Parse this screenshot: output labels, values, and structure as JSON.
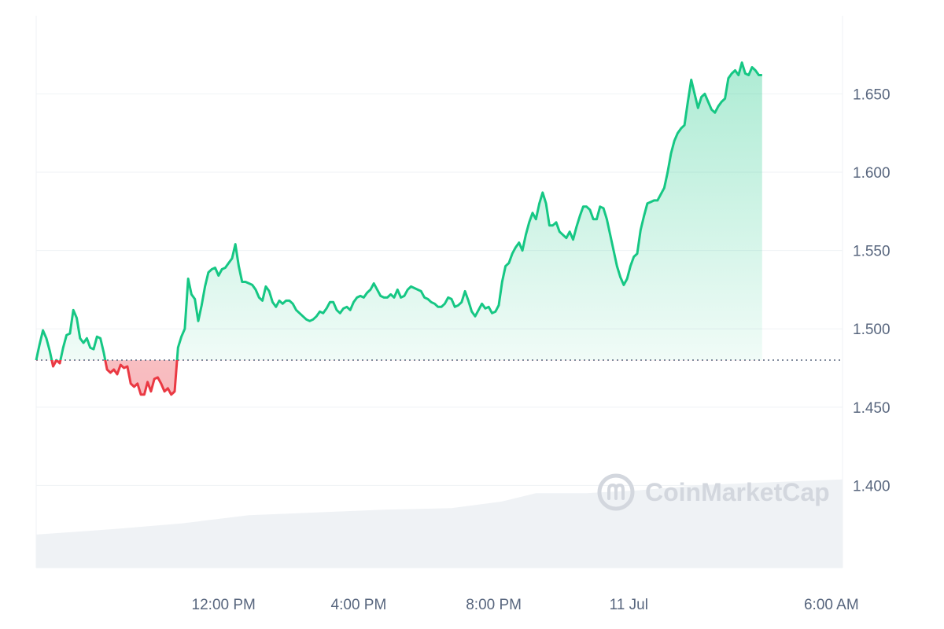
{
  "chart_data": {
    "type": "area",
    "baseline": 1.48,
    "colors": {
      "up": "#16c784",
      "down": "#ea3943",
      "grid": "#eff2f5",
      "volume": "#eff2f5",
      "baseline": "#58667e",
      "axis_text": "#58667e"
    },
    "y_ticks": [
      {
        "value": 1.4,
        "label": "1.400"
      },
      {
        "value": 1.45,
        "label": "1.450"
      },
      {
        "value": 1.5,
        "label": "1.500"
      },
      {
        "value": 1.55,
        "label": "1.550"
      },
      {
        "value": 1.6,
        "label": "1.600"
      },
      {
        "value": 1.65,
        "label": "1.650"
      }
    ],
    "x_ticks": [
      {
        "hour": 3.25,
        "label": "12:00 PM"
      },
      {
        "hour": 7.25,
        "label": "4:00 PM"
      },
      {
        "hour": 11.25,
        "label": "8:00 PM"
      },
      {
        "hour": 15.25,
        "label": "11 Jul"
      },
      {
        "hour": 21.25,
        "label": "6:00 AM"
      }
    ],
    "ylim": [
      1.3475,
      1.6999
    ],
    "xlim": [
      -2.3,
      21.58
    ],
    "price": [
      [
        -2.3,
        1.48
      ],
      [
        -2.2,
        1.49
      ],
      [
        -2.1,
        1.499
      ],
      [
        -2.0,
        1.494
      ],
      [
        -1.9,
        1.486
      ],
      [
        -1.8,
        1.476
      ],
      [
        -1.7,
        1.48
      ],
      [
        -1.6,
        1.478
      ],
      [
        -1.5,
        1.488
      ],
      [
        -1.4,
        1.496
      ],
      [
        -1.3,
        1.497
      ],
      [
        -1.2,
        1.512
      ],
      [
        -1.1,
        1.507
      ],
      [
        -1.0,
        1.494
      ],
      [
        -0.9,
        1.491
      ],
      [
        -0.8,
        1.494
      ],
      [
        -0.7,
        1.488
      ],
      [
        -0.6,
        1.487
      ],
      [
        -0.5,
        1.495
      ],
      [
        -0.4,
        1.494
      ],
      [
        -0.3,
        1.485
      ],
      [
        -0.2,
        1.474
      ],
      [
        -0.1,
        1.472
      ],
      [
        0.0,
        1.474
      ],
      [
        0.1,
        1.471
      ],
      [
        0.2,
        1.477
      ],
      [
        0.3,
        1.475
      ],
      [
        0.4,
        1.476
      ],
      [
        0.5,
        1.465
      ],
      [
        0.6,
        1.463
      ],
      [
        0.7,
        1.465
      ],
      [
        0.8,
        1.458
      ],
      [
        0.9,
        1.458
      ],
      [
        1.0,
        1.466
      ],
      [
        1.1,
        1.46
      ],
      [
        1.2,
        1.468
      ],
      [
        1.3,
        1.469
      ],
      [
        1.4,
        1.465
      ],
      [
        1.5,
        1.46
      ],
      [
        1.6,
        1.462
      ],
      [
        1.7,
        1.458
      ],
      [
        1.8,
        1.46
      ],
      [
        1.9,
        1.488
      ],
      [
        2.0,
        1.495
      ],
      [
        2.1,
        1.5
      ],
      [
        2.2,
        1.532
      ],
      [
        2.3,
        1.522
      ],
      [
        2.4,
        1.519
      ],
      [
        2.5,
        1.505
      ],
      [
        2.6,
        1.515
      ],
      [
        2.7,
        1.527
      ],
      [
        2.8,
        1.536
      ],
      [
        2.9,
        1.538
      ],
      [
        3.0,
        1.539
      ],
      [
        3.1,
        1.534
      ],
      [
        3.2,
        1.538
      ],
      [
        3.3,
        1.539
      ],
      [
        3.4,
        1.542
      ],
      [
        3.5,
        1.545
      ],
      [
        3.6,
        1.554
      ],
      [
        3.7,
        1.54
      ],
      [
        3.8,
        1.53
      ],
      [
        3.9,
        1.53
      ],
      [
        4.0,
        1.529
      ],
      [
        4.1,
        1.528
      ],
      [
        4.2,
        1.525
      ],
      [
        4.3,
        1.52
      ],
      [
        4.4,
        1.518
      ],
      [
        4.5,
        1.527
      ],
      [
        4.6,
        1.524
      ],
      [
        4.7,
        1.517
      ],
      [
        4.8,
        1.514
      ],
      [
        4.9,
        1.518
      ],
      [
        5.0,
        1.516
      ],
      [
        5.1,
        1.518
      ],
      [
        5.2,
        1.518
      ],
      [
        5.3,
        1.516
      ],
      [
        5.4,
        1.512
      ],
      [
        5.5,
        1.51
      ],
      [
        5.6,
        1.508
      ],
      [
        5.7,
        1.506
      ],
      [
        5.8,
        1.505
      ],
      [
        5.9,
        1.506
      ],
      [
        6.0,
        1.508
      ],
      [
        6.1,
        1.511
      ],
      [
        6.2,
        1.51
      ],
      [
        6.3,
        1.513
      ],
      [
        6.4,
        1.517
      ],
      [
        6.5,
        1.517
      ],
      [
        6.6,
        1.512
      ],
      [
        6.7,
        1.51
      ],
      [
        6.8,
        1.513
      ],
      [
        6.9,
        1.514
      ],
      [
        7.0,
        1.512
      ],
      [
        7.1,
        1.517
      ],
      [
        7.2,
        1.52
      ],
      [
        7.3,
        1.521
      ],
      [
        7.4,
        1.52
      ],
      [
        7.5,
        1.523
      ],
      [
        7.6,
        1.525
      ],
      [
        7.7,
        1.529
      ],
      [
        7.8,
        1.525
      ],
      [
        7.9,
        1.521
      ],
      [
        8.0,
        1.52
      ],
      [
        8.1,
        1.52
      ],
      [
        8.2,
        1.522
      ],
      [
        8.3,
        1.52
      ],
      [
        8.4,
        1.525
      ],
      [
        8.5,
        1.52
      ],
      [
        8.6,
        1.521
      ],
      [
        8.7,
        1.525
      ],
      [
        8.8,
        1.527
      ],
      [
        8.9,
        1.526
      ],
      [
        9.0,
        1.525
      ],
      [
        9.1,
        1.524
      ],
      [
        9.2,
        1.52
      ],
      [
        9.3,
        1.519
      ],
      [
        9.4,
        1.517
      ],
      [
        9.5,
        1.516
      ],
      [
        9.6,
        1.514
      ],
      [
        9.7,
        1.514
      ],
      [
        9.8,
        1.516
      ],
      [
        9.9,
        1.52
      ],
      [
        10.0,
        1.519
      ],
      [
        10.1,
        1.514
      ],
      [
        10.2,
        1.515
      ],
      [
        10.3,
        1.517
      ],
      [
        10.4,
        1.524
      ],
      [
        10.5,
        1.518
      ],
      [
        10.6,
        1.511
      ],
      [
        10.7,
        1.508
      ],
      [
        10.8,
        1.512
      ],
      [
        10.9,
        1.516
      ],
      [
        11.0,
        1.513
      ],
      [
        11.1,
        1.514
      ],
      [
        11.2,
        1.51
      ],
      [
        11.3,
        1.511
      ],
      [
        11.4,
        1.515
      ],
      [
        11.5,
        1.53
      ],
      [
        11.6,
        1.54
      ],
      [
        11.7,
        1.542
      ],
      [
        11.8,
        1.548
      ],
      [
        11.9,
        1.552
      ],
      [
        12.0,
        1.555
      ],
      [
        12.1,
        1.55
      ],
      [
        12.2,
        1.56
      ],
      [
        12.3,
        1.568
      ],
      [
        12.4,
        1.574
      ],
      [
        12.5,
        1.57
      ],
      [
        12.6,
        1.58
      ],
      [
        12.7,
        1.587
      ],
      [
        12.8,
        1.58
      ],
      [
        12.9,
        1.566
      ],
      [
        13.0,
        1.566
      ],
      [
        13.1,
        1.568
      ],
      [
        13.2,
        1.562
      ],
      [
        13.3,
        1.56
      ],
      [
        13.4,
        1.558
      ],
      [
        13.5,
        1.562
      ],
      [
        13.6,
        1.557
      ],
      [
        13.7,
        1.565
      ],
      [
        13.8,
        1.572
      ],
      [
        13.9,
        1.578
      ],
      [
        14.0,
        1.578
      ],
      [
        14.1,
        1.576
      ],
      [
        14.2,
        1.57
      ],
      [
        14.3,
        1.57
      ],
      [
        14.4,
        1.578
      ],
      [
        14.5,
        1.577
      ],
      [
        14.6,
        1.57
      ],
      [
        14.7,
        1.56
      ],
      [
        14.8,
        1.55
      ],
      [
        14.9,
        1.54
      ],
      [
        15.0,
        1.533
      ],
      [
        15.1,
        1.528
      ],
      [
        15.2,
        1.532
      ],
      [
        15.3,
        1.54
      ],
      [
        15.4,
        1.546
      ],
      [
        15.5,
        1.548
      ],
      [
        15.6,
        1.563
      ],
      [
        15.7,
        1.572
      ],
      [
        15.8,
        1.58
      ],
      [
        15.9,
        1.581
      ],
      [
        16.0,
        1.582
      ],
      [
        16.1,
        1.582
      ],
      [
        16.2,
        1.586
      ],
      [
        16.3,
        1.59
      ],
      [
        16.4,
        1.6
      ],
      [
        16.5,
        1.612
      ],
      [
        16.6,
        1.62
      ],
      [
        16.7,
        1.625
      ],
      [
        16.8,
        1.628
      ],
      [
        16.9,
        1.63
      ],
      [
        17.0,
        1.645
      ],
      [
        17.1,
        1.659
      ],
      [
        17.2,
        1.65
      ],
      [
        17.3,
        1.641
      ],
      [
        17.4,
        1.648
      ],
      [
        17.5,
        1.65
      ],
      [
        17.6,
        1.645
      ],
      [
        17.7,
        1.64
      ],
      [
        17.8,
        1.638
      ],
      [
        17.9,
        1.642
      ],
      [
        18.0,
        1.645
      ],
      [
        18.1,
        1.647
      ],
      [
        18.2,
        1.66
      ],
      [
        18.3,
        1.663
      ],
      [
        18.4,
        1.665
      ],
      [
        18.5,
        1.662
      ],
      [
        18.6,
        1.67
      ],
      [
        18.7,
        1.663
      ],
      [
        18.8,
        1.662
      ],
      [
        18.9,
        1.667
      ],
      [
        19.0,
        1.665
      ],
      [
        19.1,
        1.662
      ],
      [
        19.2,
        1.662
      ]
    ],
    "volume": [
      [
        -2.3,
        0.06
      ],
      [
        0.0,
        0.07
      ],
      [
        2.0,
        0.08
      ],
      [
        4.0,
        0.095
      ],
      [
        6.0,
        0.1
      ],
      [
        8.0,
        0.105
      ],
      [
        10.0,
        0.108
      ],
      [
        11.5,
        0.12
      ],
      [
        12.5,
        0.135
      ],
      [
        14.0,
        0.135
      ],
      [
        15.5,
        0.14
      ],
      [
        17.5,
        0.15
      ],
      [
        19.2,
        0.16
      ]
    ]
  },
  "watermark": {
    "text": "CoinMarketCap"
  }
}
